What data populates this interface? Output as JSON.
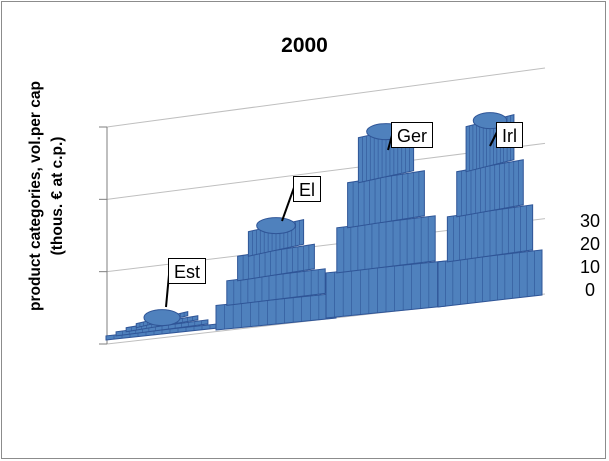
{
  "chart_data": {
    "type": "bar",
    "title": "2000",
    "ylabel": "product categories, vol.per cap\n(thous. € at c.p.)",
    "ylim": [
      0,
      30
    ],
    "yticks": [
      "0",
      "10",
      "20",
      "30"
    ],
    "categories": [
      "Est",
      "El",
      "Ger",
      "Irl"
    ],
    "values": [
      2,
      12,
      22,
      22
    ],
    "grid": true,
    "legend": "none"
  },
  "colors": {
    "bar": "#4f81bd",
    "bar_dark": "#2f5597",
    "grid": "#bfbfbf",
    "axis": "#7f7f7f"
  }
}
